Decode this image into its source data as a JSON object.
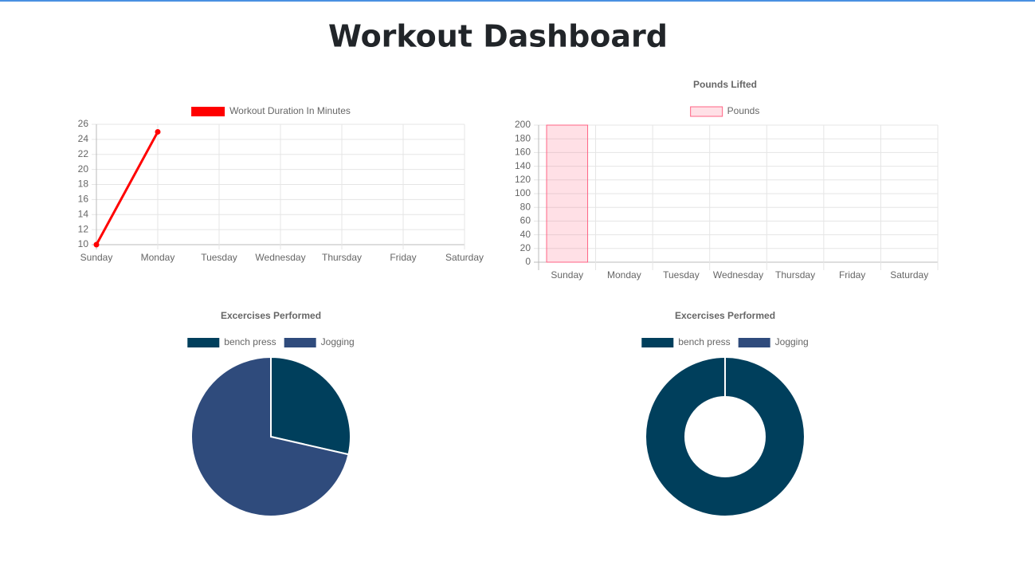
{
  "header": {
    "title": "Workout Dashboard"
  },
  "chart_data": [
    {
      "type": "line",
      "categories": [
        "Sunday",
        "Monday",
        "Tuesday",
        "Wednesday",
        "Thursday",
        "Friday",
        "Saturday"
      ],
      "series": [
        {
          "name": "Workout Duration In Minutes",
          "color": "#ff0000",
          "values": [
            10,
            25,
            null,
            null,
            null,
            null,
            null
          ]
        }
      ],
      "ylim": [
        10,
        26
      ],
      "yticks": [
        10,
        12,
        14,
        16,
        18,
        20,
        22,
        24,
        26
      ],
      "grid": true
    },
    {
      "type": "bar",
      "title": "Pounds Lifted",
      "categories": [
        "Sunday",
        "Monday",
        "Tuesday",
        "Wednesday",
        "Thursday",
        "Friday",
        "Saturday"
      ],
      "series": [
        {
          "name": "Pounds",
          "color": "#ff6384",
          "values": [
            200,
            null,
            null,
            null,
            null,
            null,
            null
          ]
        }
      ],
      "ylim": [
        0,
        200
      ],
      "yticks": [
        0,
        20,
        40,
        60,
        80,
        100,
        120,
        140,
        160,
        180,
        200
      ],
      "grid": true
    },
    {
      "type": "pie",
      "title": "Excercises Performed",
      "categories": [
        "bench press",
        "Jogging"
      ],
      "values": [
        2,
        5
      ],
      "colors": [
        "#003f5c",
        "#2f4b7c"
      ]
    },
    {
      "type": "doughnut",
      "title": "Excercises Performed",
      "categories": [
        "bench press",
        "Jogging"
      ],
      "values": [
        1,
        0
      ],
      "colors": [
        "#003f5c",
        "#2f4b7c"
      ]
    }
  ]
}
